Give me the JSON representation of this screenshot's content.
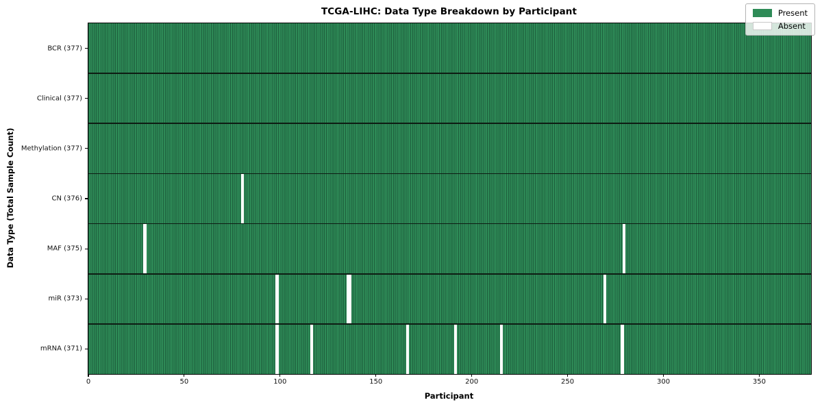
{
  "chart_data": {
    "type": "heatmap",
    "title": "TCGA-LIHC: Data Type Breakdown by Participant",
    "xlabel": "Participant",
    "ylabel": "Data Type (Total Sample Count)",
    "n_participants": 377,
    "xlim": [
      0,
      377
    ],
    "x_ticks": [
      0,
      50,
      100,
      150,
      200,
      250,
      300,
      350
    ],
    "grid": false,
    "legend": {
      "position": "upper right",
      "entries": [
        {
          "label": "Present",
          "color": "#2e8b57"
        },
        {
          "label": "Absent",
          "color": "#ffffff"
        }
      ]
    },
    "colors": {
      "present": "#2e8b57",
      "present_edge": "#1d5e3c",
      "absent": "#ffffff",
      "row_separator": "#0e1c13"
    },
    "rows": [
      {
        "label": "BCR (377)",
        "data_type": "BCR",
        "present_count": 377,
        "absent_participants": []
      },
      {
        "label": "Clinical (377)",
        "data_type": "Clinical",
        "present_count": 377,
        "absent_participants": []
      },
      {
        "label": "Methylation (377)",
        "data_type": "Methylation",
        "present_count": 377,
        "absent_participants": []
      },
      {
        "label": "CN (376)",
        "data_type": "CN",
        "present_count": 376,
        "absent_participants": [
          80
        ]
      },
      {
        "label": "MAF (375)",
        "data_type": "MAF",
        "present_count": 375,
        "absent_participants": [
          29,
          279
        ]
      },
      {
        "label": "miR (373)",
        "data_type": "miR",
        "present_count": 373,
        "absent_participants": [
          98,
          135,
          136,
          269
        ]
      },
      {
        "label": "mRNA (371)",
        "data_type": "mRNA",
        "present_count": 371,
        "absent_participants": [
          98,
          116,
          166,
          191,
          215,
          278
        ]
      }
    ]
  }
}
